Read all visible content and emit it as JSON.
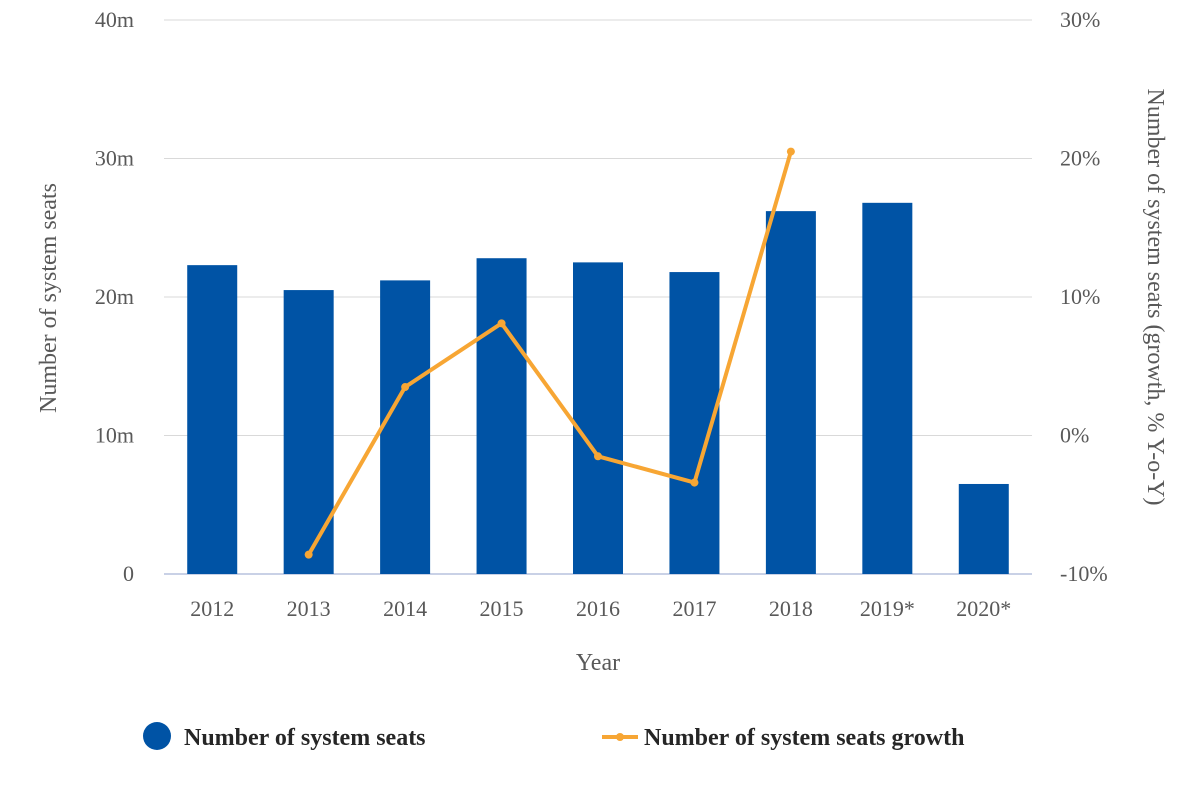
{
  "chart_data": {
    "type": "bar",
    "categories": [
      "2012",
      "2013",
      "2014",
      "2015",
      "2016",
      "2017",
      "2018",
      "2019*",
      "2020*"
    ],
    "series": [
      {
        "name": "Number of system seats",
        "type": "bar",
        "axis": "left",
        "values": [
          22.3,
          20.5,
          21.2,
          22.8,
          22.5,
          21.8,
          26.2,
          26.8,
          6.5
        ]
      },
      {
        "name": "Number of system seats growth",
        "type": "line",
        "axis": "right",
        "values": [
          null,
          -8.6,
          3.5,
          8.1,
          -1.5,
          -3.4,
          20.5,
          null,
          null
        ]
      }
    ],
    "xlabel": "Year",
    "ylabel": "Number of system seats",
    "ylabel_right": "Number of system seats (growth, % Y-o-Y)",
    "ylim": [
      0,
      40
    ],
    "ylim_right": [
      -10,
      30
    ],
    "yticks": [
      {
        "value": 0,
        "label": "0"
      },
      {
        "value": 10,
        "label": "10m"
      },
      {
        "value": 20,
        "label": "20m"
      },
      {
        "value": 30,
        "label": "30m"
      },
      {
        "value": 40,
        "label": "40m"
      }
    ],
    "yticks_right": [
      {
        "value": -10,
        "label": "-10%"
      },
      {
        "value": 0,
        "label": "0%"
      },
      {
        "value": 10,
        "label": "10%"
      },
      {
        "value": 20,
        "label": "20%"
      },
      {
        "value": 30,
        "label": "30%"
      }
    ],
    "grid": true,
    "legend_position": "bottom",
    "colors": {
      "bar": "#0053a5",
      "line": "#f7a634",
      "grid": "#d9d9d9",
      "text": "#595959"
    }
  }
}
